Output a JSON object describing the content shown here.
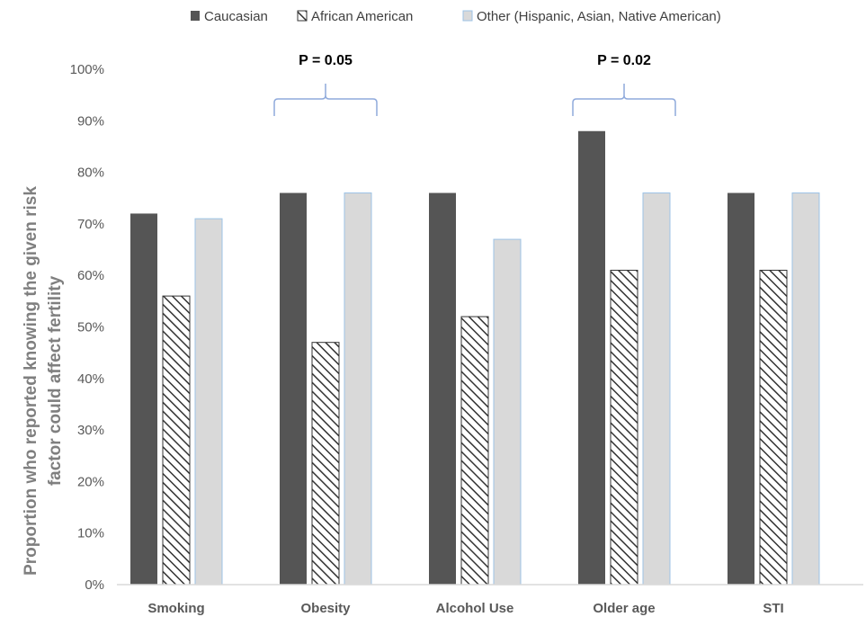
{
  "chart_data": {
    "type": "bar",
    "categories": [
      "Smoking",
      "Obesity",
      "Alcohol Use",
      "Older age",
      "STI"
    ],
    "series": [
      {
        "name": "Caucasian",
        "values": [
          72,
          76,
          76,
          88,
          76
        ],
        "color": "#555555",
        "pattern": "solid"
      },
      {
        "name": "African American",
        "values": [
          56,
          47,
          52,
          61,
          61
        ],
        "color": "#ffffff",
        "pattern": "diagonal-hatch"
      },
      {
        "name": "Other (Hispanic, Asian, Native American)",
        "values": [
          71,
          76,
          67,
          76,
          76
        ],
        "color": "#d9d9d9",
        "pattern": "solid-blue-outline"
      }
    ],
    "ylabel_lines": [
      "Proportion who reported knowing the given risk",
      "factor could affect fertility"
    ],
    "xlabel": "",
    "ylim": [
      0,
      100
    ],
    "yticks": [
      "0%",
      "10%",
      "20%",
      "30%",
      "40%",
      "50%",
      "60%",
      "70%",
      "80%",
      "90%",
      "100%"
    ],
    "legend_position": "top",
    "grid": false,
    "annotations": [
      {
        "text": "P = 0.05",
        "category": "Obesity"
      },
      {
        "text": "P = 0.02",
        "category": "Older age"
      }
    ],
    "colors": {
      "axis": "#d9d9d9",
      "bracket": "#8faadc",
      "outline_other": "#9dc3e6"
    }
  }
}
